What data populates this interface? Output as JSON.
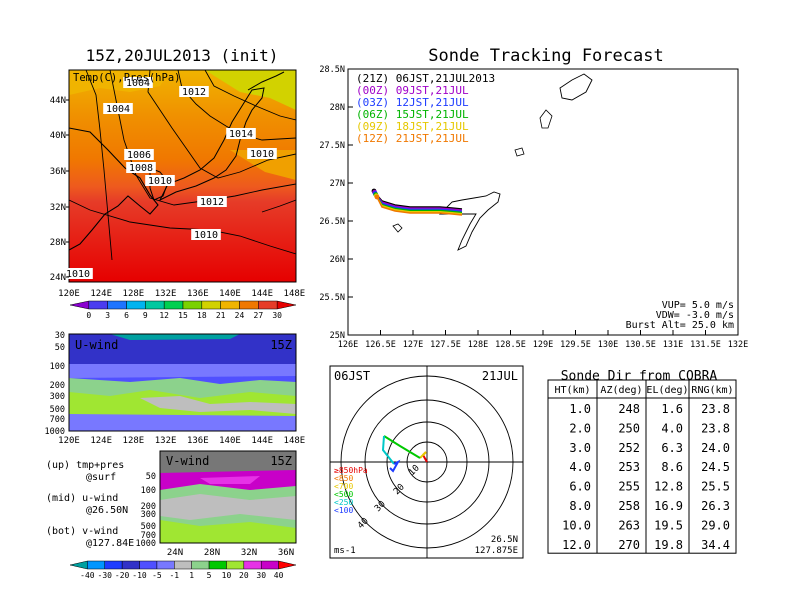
{
  "map_panel": {
    "title": "15Z,20JUL2013 (init)",
    "inner_label": "Temp(C),Pres(hPa)",
    "lat_labels": [
      "44N",
      "40N",
      "36N",
      "32N",
      "28N",
      "24N"
    ],
    "lon_labels": [
      "120E",
      "124E",
      "128E",
      "132E",
      "136E",
      "140E",
      "144E",
      "148E"
    ],
    "isobar_labels": [
      "1004",
      "1004",
      "1012",
      "1014",
      "1006",
      "1008",
      "1010",
      "1010",
      "1012",
      "1010",
      "1010"
    ],
    "colorbar_ticks": [
      "0",
      "3",
      "6",
      "9",
      "12",
      "15",
      "18",
      "21",
      "24",
      "27",
      "30"
    ],
    "colorbar_colors": [
      "#8a00d0",
      "#4b3cf0",
      "#1e74ff",
      "#00b4f0",
      "#00c8a0",
      "#00d050",
      "#7ad200",
      "#d2d200",
      "#f0b400",
      "#f07800",
      "#e63c28",
      "#e60000"
    ]
  },
  "u_wind": {
    "label": "U-wind",
    "time": "15Z",
    "y_labels": [
      "30",
      "50",
      "100",
      "200",
      "300",
      "500",
      "700",
      "1000"
    ],
    "x_labels": [
      "120E",
      "124E",
      "128E",
      "132E",
      "136E",
      "140E",
      "144E",
      "148E"
    ]
  },
  "v_wind": {
    "label": "V-wind",
    "time": "15Z",
    "y_labels": [
      "50",
      "100",
      "200",
      "300",
      "500",
      "700",
      "1000"
    ],
    "x_labels": [
      "24N",
      "28N",
      "32N",
      "36N"
    ],
    "colorbar_ticks": [
      "-40",
      "-30",
      "-20",
      "-10",
      "-5",
      "-1",
      "1",
      "5",
      "10",
      "20",
      "30",
      "40"
    ],
    "colorbar_colors": [
      "#00a0a0",
      "#0096ff",
      "#1e3cff",
      "#3232c8",
      "#5050ff",
      "#7878ff",
      "#bebebe",
      "#8cd28c",
      "#00c800",
      "#a0e632",
      "#e632e6",
      "#c800c8",
      "#ff0000"
    ]
  },
  "legend_notes": {
    "up_line1": "(up) tmp+pres",
    "up_line2": "@surf",
    "mid_line1": "(mid) u-wind",
    "mid_line2": "@26.50N",
    "bot_line1": "(bot) v-wind",
    "bot_line2": "@127.84E"
  },
  "tracking": {
    "title": "Sonde Tracking Forecast",
    "lat_labels": [
      "28.5N",
      "28N",
      "27.5N",
      "27N",
      "26.5N",
      "26N",
      "25.5N",
      "25N"
    ],
    "lon_labels": [
      "126E",
      "126.5E",
      "127E",
      "127.5E",
      "128E",
      "128.5E",
      "129E",
      "129.5E",
      "130E",
      "130.5E",
      "131E",
      "131.5E",
      "132E"
    ],
    "legend": [
      {
        "text": "(21Z)  06JST,21JUL2013",
        "color": "#000000"
      },
      {
        "text": "(00Z)  09JST,21JUL",
        "color": "#a000c8"
      },
      {
        "text": "(03Z)  12JST,21JUL",
        "color": "#1e3cff"
      },
      {
        "text": "(06Z)  15JST,21JUL",
        "color": "#00b400"
      },
      {
        "text": "(09Z)  18JST,21JUL",
        "color": "#e6c800"
      },
      {
        "text": "(12Z)  21JST,21JUL",
        "color": "#f07800"
      }
    ],
    "params": [
      "VUP=  5.0  m/s",
      "VDW= -3.0  m/s",
      "Burst Alt=  25.0  km"
    ]
  },
  "polar": {
    "left_label": "06JST",
    "right_label": "21JUL",
    "ring_labels": [
      "10",
      "20",
      "30",
      "40"
    ],
    "legend": [
      {
        "text": "≥850hPa",
        "color": "#e60000"
      },
      {
        "text": "<850",
        "color": "#f07800"
      },
      {
        "text": "<700",
        "color": "#e6c800"
      },
      {
        "text": "<500",
        "color": "#00c800"
      },
      {
        "text": "<250",
        "color": "#00c8c8"
      },
      {
        "text": "<100",
        "color": "#1e3cff"
      }
    ],
    "unit": "ms-1",
    "pos_line1": "26.5N",
    "pos_line2": "127.875E"
  },
  "cobra_table": {
    "title": "Sonde Dir from COBRA",
    "headers": [
      "HT(km)",
      "AZ(deg)",
      "EL(deg)",
      "RNG(km)"
    ],
    "rows": [
      [
        "1.0",
        "248",
        "1.6",
        "23.8"
      ],
      [
        "2.0",
        "250",
        "4.0",
        "23.8"
      ],
      [
        "3.0",
        "252",
        "6.3",
        "24.0"
      ],
      [
        "4.0",
        "253",
        "8.6",
        "24.5"
      ],
      [
        "6.0",
        "255",
        "12.8",
        "25.5"
      ],
      [
        "8.0",
        "258",
        "16.9",
        "26.3"
      ],
      [
        "10.0",
        "263",
        "19.5",
        "29.0"
      ],
      [
        "12.0",
        "270",
        "19.8",
        "34.4"
      ]
    ]
  }
}
